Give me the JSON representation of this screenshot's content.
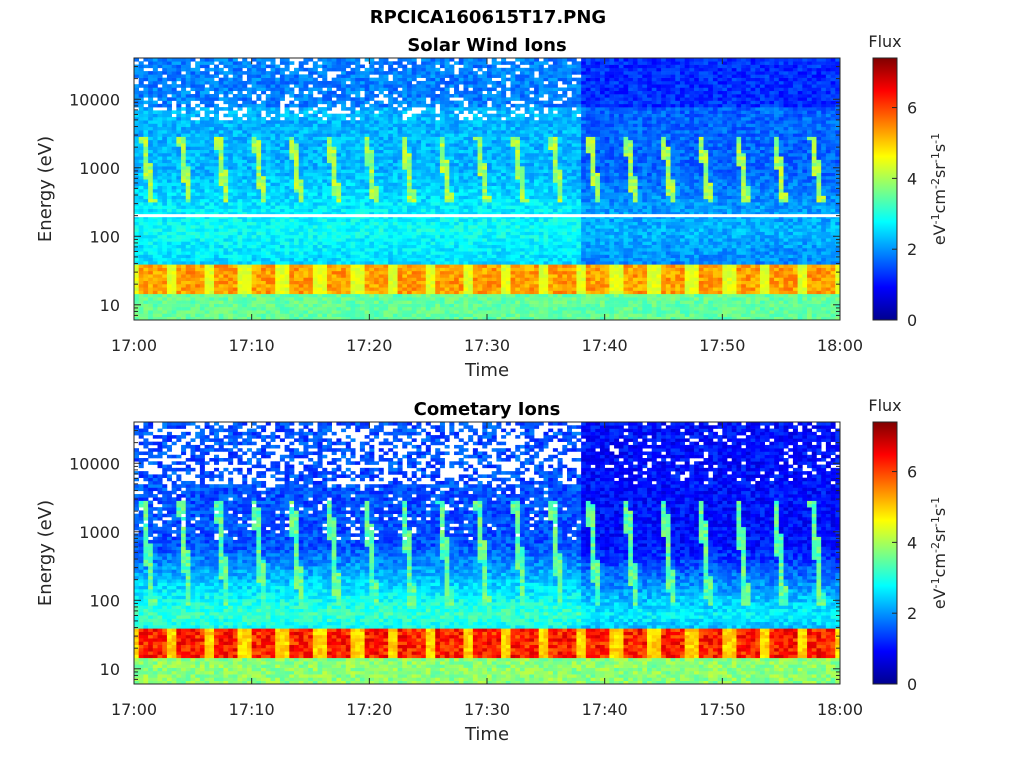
{
  "page": {
    "title": "RPCICA160615T17.PNG"
  },
  "chart_data": [
    {
      "type": "heatmap",
      "title": "Solar Wind Ions",
      "xlabel": "Time",
      "ylabel": "Energy (eV)",
      "x_ticks": [
        "17:00",
        "17:10",
        "17:20",
        "17:30",
        "17:40",
        "17:50",
        "18:00"
      ],
      "y_ticks": [
        "10",
        "100",
        "1000",
        "10000"
      ],
      "y_scale": "log",
      "xlim": [
        "17:00",
        "18:00"
      ],
      "ylim": [
        6,
        40000
      ],
      "colorbar": {
        "label": "Flux",
        "unit_label": "eV-1cm-2sr-1s-1",
        "ticks": [
          "0",
          "2",
          "4",
          "6"
        ],
        "range": [
          0,
          7.4
        ],
        "colormap": "jet"
      },
      "features": {
        "low_energy_band_eV": [
          14,
          40
        ],
        "low_energy_peak_flux": 5.5,
        "mid_energy_stripes_eV": [
          300,
          3000
        ],
        "mid_energy_stripe_flux": 4.0,
        "gap_line_energy_eV": 200,
        "pulse_count": 19,
        "background_flux": 2.0
      }
    },
    {
      "type": "heatmap",
      "title": "Cometary Ions",
      "xlabel": "Time",
      "ylabel": "Energy (eV)",
      "x_ticks": [
        "17:00",
        "17:10",
        "17:20",
        "17:30",
        "17:40",
        "17:50",
        "18:00"
      ],
      "y_ticks": [
        "10",
        "100",
        "1000",
        "10000"
      ],
      "y_scale": "log",
      "xlim": [
        "17:00",
        "18:00"
      ],
      "ylim": [
        6,
        40000
      ],
      "colorbar": {
        "label": "Flux",
        "unit_label": "eV-1cm-2sr-1s-1",
        "ticks": [
          "0",
          "2",
          "4",
          "6"
        ],
        "range": [
          0,
          7.4
        ],
        "colormap": "jet"
      },
      "features": {
        "low_energy_band_eV": [
          14,
          40
        ],
        "low_energy_peak_flux": 6.5,
        "mid_energy_stripes_eV": [
          80,
          3000
        ],
        "mid_energy_stripe_flux": 3.5,
        "pulse_count": 19,
        "background_flux": 1.2
      }
    }
  ]
}
